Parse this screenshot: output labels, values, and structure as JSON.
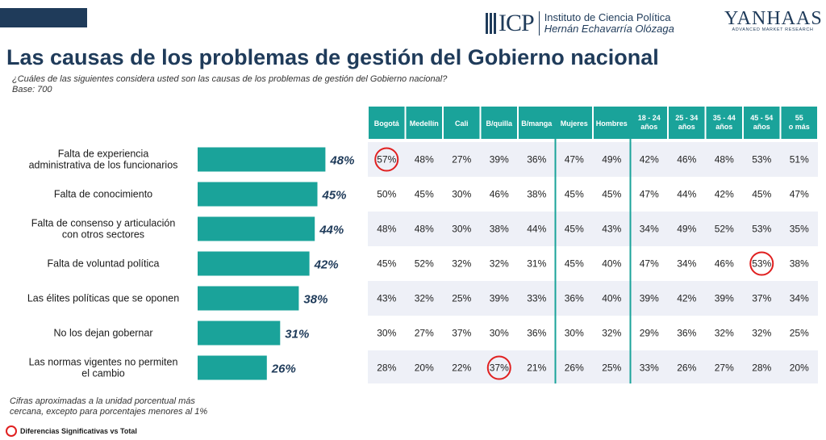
{
  "header": {
    "logo_icp_text": "ICP",
    "logo_icp_line1": "Instituto de Ciencia Política",
    "logo_icp_line2": "Hernán Echavarría Olózaga",
    "logo_yh_text": "YANHAAS",
    "logo_yh_sub": "ADVANCED MARKET RESEARCH",
    "accent_color": "#1f3b5a"
  },
  "title": "Las causas de los problemas de gestión del Gobierno nacional",
  "subtitle": "¿Cuáles de las siguientes considera usted son las causas de los problemas de gestión del Gobierno nacional?",
  "base": "Base: 700",
  "note_line1": "Cifras aproximadas a la unidad porcentual más",
  "note_line2": "cercana, excepto para porcentajes menores al 1%",
  "legend_label": "Diferencias Significativas vs Total",
  "colors": {
    "bar": "#1aa39a",
    "header_bg": "#1aa39a",
    "row_alt": "#eef0f7",
    "highlight": "#e02020",
    "value_text": "#1f3b5a"
  },
  "chart_data": {
    "type": "bar",
    "orientation": "horizontal",
    "categories": [
      "Falta de experiencia administrativa de los funcionarios",
      "Falta de conocimiento",
      "Falta de consenso y articulación con otros sectores",
      "Falta de voluntad política",
      "Las élites políticas que se oponen",
      "No los dejan gobernar",
      "Las normas vigentes no permiten el cambio"
    ],
    "category_lines": [
      [
        "Falta de experiencia",
        "administrativa de los funcionarios"
      ],
      [
        "Falta de conocimiento"
      ],
      [
        "Falta de consenso y articulación",
        "con otros sectores"
      ],
      [
        "Falta de voluntad política"
      ],
      [
        "Las élites políticas que se oponen"
      ],
      [
        "No los dejan gobernar"
      ],
      [
        "Las normas vigentes no permiten",
        "el cambio"
      ]
    ],
    "values": [
      48,
      45,
      44,
      42,
      38,
      31,
      26
    ],
    "value_labels": [
      "48%",
      "45%",
      "44%",
      "42%",
      "38%",
      "31%",
      "26%"
    ],
    "table": {
      "columns": [
        [
          "Bogotá"
        ],
        [
          "Medellín"
        ],
        [
          "Cali"
        ],
        [
          "B/quilla"
        ],
        [
          "B/manga"
        ],
        [
          "Mujeres"
        ],
        [
          "Hombres"
        ],
        [
          "18 - 24",
          "años"
        ],
        [
          "25 - 34",
          "años"
        ],
        [
          "35 - 44",
          "años"
        ],
        [
          "45 - 54",
          "años"
        ],
        [
          "55",
          "o más"
        ]
      ],
      "rows": [
        [
          "57%",
          "48%",
          "27%",
          "39%",
          "36%",
          "47%",
          "49%",
          "42%",
          "46%",
          "48%",
          "53%",
          "51%"
        ],
        [
          "50%",
          "45%",
          "30%",
          "46%",
          "38%",
          "45%",
          "45%",
          "47%",
          "44%",
          "42%",
          "45%",
          "47%"
        ],
        [
          "48%",
          "48%",
          "30%",
          "38%",
          "44%",
          "45%",
          "43%",
          "34%",
          "49%",
          "52%",
          "53%",
          "35%"
        ],
        [
          "45%",
          "52%",
          "32%",
          "32%",
          "31%",
          "45%",
          "40%",
          "47%",
          "34%",
          "46%",
          "53%",
          "38%"
        ],
        [
          "43%",
          "32%",
          "25%",
          "39%",
          "33%",
          "36%",
          "40%",
          "39%",
          "42%",
          "39%",
          "37%",
          "34%"
        ],
        [
          "30%",
          "27%",
          "37%",
          "30%",
          "36%",
          "30%",
          "32%",
          "29%",
          "36%",
          "32%",
          "32%",
          "25%"
        ],
        [
          "28%",
          "20%",
          "22%",
          "37%",
          "21%",
          "26%",
          "25%",
          "33%",
          "26%",
          "27%",
          "28%",
          "20%"
        ]
      ],
      "highlighted": [
        [
          0,
          0
        ],
        [
          3,
          10
        ],
        [
          6,
          3
        ]
      ]
    }
  }
}
